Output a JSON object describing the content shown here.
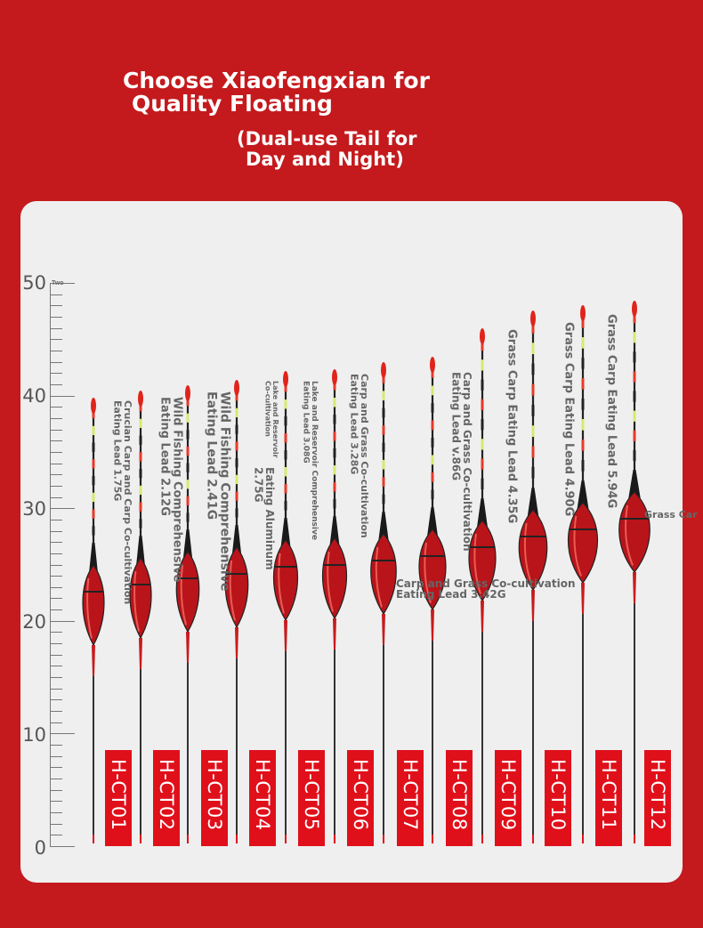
{
  "title": {
    "line1": "Choose Xiaofengxian for",
    "line2": "Quality Floating",
    "line3": "(Dual-use Tail for",
    "line4": "Day and Night)"
  },
  "ruler": {
    "labels": [
      "50",
      "40",
      "30",
      "20",
      "10",
      "0"
    ],
    "small_text": "Two"
  },
  "floats": [
    {
      "code": "H-CT01",
      "label": "Crucian Carp and Carp Co-cultivation\nEating Lead 1.75G"
    },
    {
      "code": "H-CT02",
      "label": "Wild Fishing Comprehensive\nEating Lead 2.12G"
    },
    {
      "code": "H-CT03",
      "label": "Wild Fishing Comprehensive\nEating Lead 2.41G"
    },
    {
      "code": "H-CT04",
      "label": "Lake and Reservoir\nCo-cultivation",
      "label_b": "Eating Aluminum\n2.75G"
    },
    {
      "code": "H-CT05",
      "label": "Lake and Reservoir Comprehensive\nEating Lead 3.08G"
    },
    {
      "code": "H-CT06",
      "label": "Carp and Grass Co-cultivation\nEating Lead 3.28G"
    },
    {
      "code": "H-CT07",
      "label": "Carp and Grass Co-cultivation\nEating Lead 3.42G"
    },
    {
      "code": "H-CT08",
      "label": "Carp and Grass Co-cultivation\nEating Lead v.86G"
    },
    {
      "code": "H-CT09",
      "label": "Grass Carp Eating Lead 4.35G"
    },
    {
      "code": "H-CT10",
      "label": "Grass Carp Eating Lead 4.90G"
    },
    {
      "code": "H-CT11",
      "label": "Grass Carp Eating Lead 5.94G"
    },
    {
      "code": "H-CT12",
      "label": "Grass Car"
    }
  ],
  "colors": {
    "background": "#c41a1d",
    "panel": "#efefef",
    "code_bg": "#e0101b"
  }
}
